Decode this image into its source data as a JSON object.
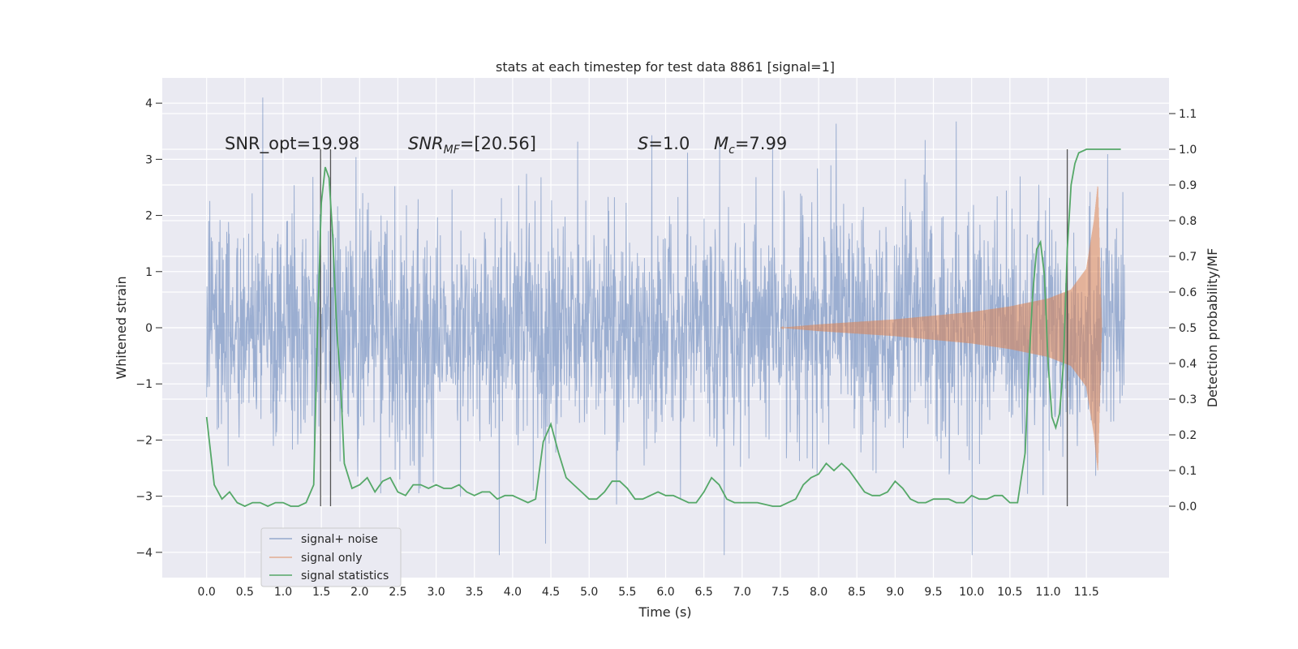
{
  "chart_data": {
    "type": "line",
    "title": "stats at each timestep for test data 8861 [signal=1]",
    "xlabel": "Time (s)",
    "ylabel_left": "Whitened strain",
    "ylabel_right": "Detection probability/MF",
    "xlim": [
      -0.58,
      12.58
    ],
    "ylim_left": [
      -4.45,
      4.45
    ],
    "ylim_right": [
      -0.2,
      1.2
    ],
    "xticks": [
      "0.0",
      "0.5",
      "1.0",
      "1.5",
      "2.0",
      "2.5",
      "3.0",
      "3.5",
      "4.0",
      "4.5",
      "5.0",
      "5.5",
      "6.0",
      "6.5",
      "7.0",
      "7.5",
      "8.0",
      "8.5",
      "9.0",
      "9.5",
      "10.0",
      "10.5",
      "11.0",
      "11.5"
    ],
    "xtick_values": [
      0,
      0.5,
      1,
      1.5,
      2,
      2.5,
      3,
      3.5,
      4,
      4.5,
      5,
      5.5,
      6,
      6.5,
      7,
      7.5,
      8,
      8.5,
      9,
      9.5,
      10,
      10.5,
      11,
      11.5
    ],
    "yticks_left": [
      "4",
      "3",
      "2",
      "1",
      "0",
      "−1",
      "−2",
      "−3",
      "−4"
    ],
    "ytick_values_left": [
      4,
      3,
      2,
      1,
      0,
      -1,
      -2,
      -3,
      -4
    ],
    "yticks_right": [
      "1.1",
      "1.0",
      "0.9",
      "0.8",
      "0.7",
      "0.6",
      "0.5",
      "0.4",
      "0.3",
      "0.2",
      "0.1",
      "0.0"
    ],
    "ytick_values_right": [
      1.1,
      1.0,
      0.9,
      0.8,
      0.7,
      0.6,
      0.5,
      0.4,
      0.3,
      0.2,
      0.1,
      0.0
    ],
    "grid": true,
    "legend_position": "lower-left",
    "annotations": {
      "snr_opt": "SNR_opt=19.98",
      "snr_mf_main": "SNR",
      "snr_mf_sub": "MF",
      "snr_mf_value": "=[20.56]",
      "s_main": "S",
      "s_value": "=1.0",
      "mc_main": "M",
      "mc_sub": "c",
      "mc_value": "=7.99"
    },
    "vertical_markers_s": [
      1.49,
      1.62,
      11.25
    ],
    "series": [
      {
        "name": "signal+ noise",
        "color": "#4c72b0",
        "x_range": [
          0,
          12
        ],
        "approx_envelope": {
          "typical_amplitude": 1.3,
          "max": 4.1,
          "min": -4.05
        }
      },
      {
        "name": "signal only",
        "color": "#dd8452",
        "envelope_x": [
          7.5,
          8.0,
          9.0,
          10.0,
          10.5,
          11.0,
          11.3,
          11.5,
          11.6,
          11.65,
          11.7
        ],
        "envelope_y": [
          0.0,
          0.06,
          0.15,
          0.28,
          0.38,
          0.52,
          0.68,
          1.05,
          1.9,
          2.55,
          0.0
        ]
      },
      {
        "name": "signal statistics",
        "color": "#55a868",
        "x": [
          0.0,
          0.1,
          0.2,
          0.3,
          0.4,
          0.5,
          0.6,
          0.7,
          0.8,
          0.9,
          1.0,
          1.1,
          1.2,
          1.3,
          1.4,
          1.45,
          1.5,
          1.55,
          1.6,
          1.65,
          1.7,
          1.75,
          1.8,
          1.9,
          2.0,
          2.1,
          2.2,
          2.3,
          2.4,
          2.5,
          2.6,
          2.7,
          2.8,
          2.9,
          3.0,
          3.1,
          3.2,
          3.3,
          3.4,
          3.5,
          3.6,
          3.7,
          3.8,
          3.9,
          4.0,
          4.1,
          4.2,
          4.3,
          4.4,
          4.5,
          4.6,
          4.7,
          4.8,
          4.9,
          5.0,
          5.1,
          5.2,
          5.3,
          5.4,
          5.5,
          5.6,
          5.7,
          5.8,
          5.9,
          6.0,
          6.1,
          6.2,
          6.3,
          6.4,
          6.5,
          6.6,
          6.7,
          6.8,
          6.9,
          7.0,
          7.2,
          7.4,
          7.5,
          7.6,
          7.7,
          7.8,
          7.9,
          8.0,
          8.1,
          8.2,
          8.3,
          8.4,
          8.5,
          8.6,
          8.7,
          8.8,
          8.9,
          9.0,
          9.1,
          9.2,
          9.3,
          9.4,
          9.5,
          9.6,
          9.7,
          9.8,
          9.9,
          10.0,
          10.1,
          10.2,
          10.3,
          10.4,
          10.5,
          10.6,
          10.7,
          10.75,
          10.8,
          10.85,
          10.9,
          10.95,
          11.0,
          11.05,
          11.1,
          11.15,
          11.2,
          11.25,
          11.3,
          11.35,
          11.4,
          11.5,
          11.6,
          11.7,
          11.8,
          11.9,
          11.95
        ],
        "y": [
          0.25,
          0.06,
          0.02,
          0.04,
          0.01,
          0.0,
          0.01,
          0.01,
          0.0,
          0.01,
          0.01,
          0.0,
          0.0,
          0.01,
          0.06,
          0.5,
          0.85,
          0.95,
          0.92,
          0.75,
          0.5,
          0.35,
          0.12,
          0.05,
          0.06,
          0.08,
          0.04,
          0.07,
          0.08,
          0.04,
          0.03,
          0.06,
          0.06,
          0.05,
          0.06,
          0.05,
          0.05,
          0.06,
          0.04,
          0.03,
          0.04,
          0.04,
          0.02,
          0.03,
          0.03,
          0.02,
          0.01,
          0.02,
          0.18,
          0.23,
          0.15,
          0.08,
          0.06,
          0.04,
          0.02,
          0.02,
          0.04,
          0.07,
          0.07,
          0.05,
          0.02,
          0.02,
          0.03,
          0.04,
          0.03,
          0.03,
          0.02,
          0.01,
          0.01,
          0.04,
          0.08,
          0.06,
          0.02,
          0.01,
          0.01,
          0.01,
          0.0,
          0.0,
          0.01,
          0.02,
          0.06,
          0.08,
          0.09,
          0.12,
          0.1,
          0.12,
          0.1,
          0.07,
          0.04,
          0.03,
          0.03,
          0.04,
          0.07,
          0.05,
          0.02,
          0.01,
          0.01,
          0.02,
          0.02,
          0.02,
          0.01,
          0.01,
          0.03,
          0.02,
          0.02,
          0.03,
          0.03,
          0.01,
          0.01,
          0.15,
          0.4,
          0.6,
          0.72,
          0.74,
          0.65,
          0.4,
          0.25,
          0.22,
          0.26,
          0.4,
          0.72,
          0.9,
          0.96,
          0.99,
          1.0,
          1.0,
          1.0,
          1.0,
          1.0,
          1.0
        ]
      }
    ]
  }
}
